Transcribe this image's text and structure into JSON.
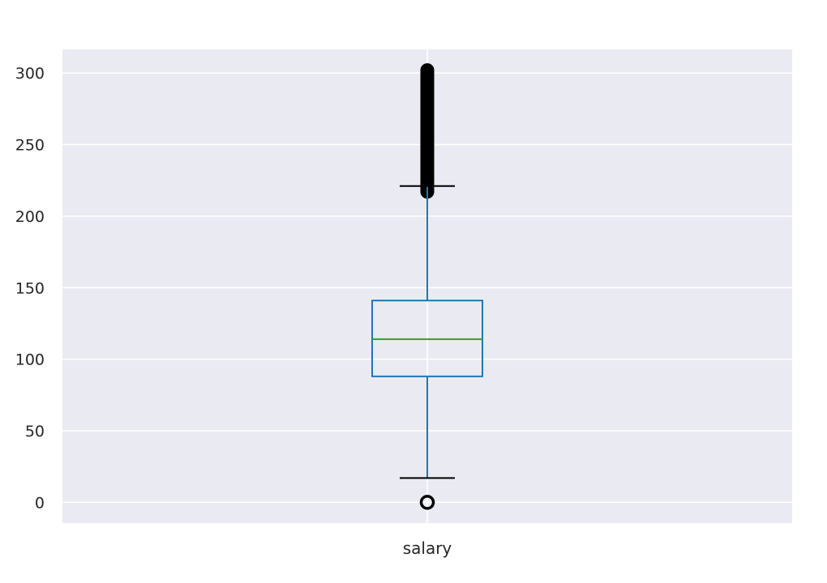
{
  "chart_data": {
    "type": "box",
    "categories": [
      "salary"
    ],
    "series": [
      {
        "whisker_low": 17,
        "q1": 88,
        "median": 114,
        "q3": 141,
        "whisker_high": 221,
        "outliers_low": [
          0
        ],
        "outliers_high_range": [
          217,
          302
        ]
      }
    ],
    "yticks": [
      0,
      50,
      100,
      150,
      200,
      250,
      300
    ],
    "ytick_labels": [
      "0",
      "50",
      "100",
      "150",
      "200",
      "250",
      "300"
    ],
    "ylim": [
      -14.5,
      316.5
    ],
    "grid": true,
    "colors": {
      "background": "#eaeaf2",
      "grid": "#ffffff",
      "box": "#1f77b4",
      "median": "#2ca02c",
      "whisker_caps": "#000000",
      "fliers": "#000000"
    }
  }
}
